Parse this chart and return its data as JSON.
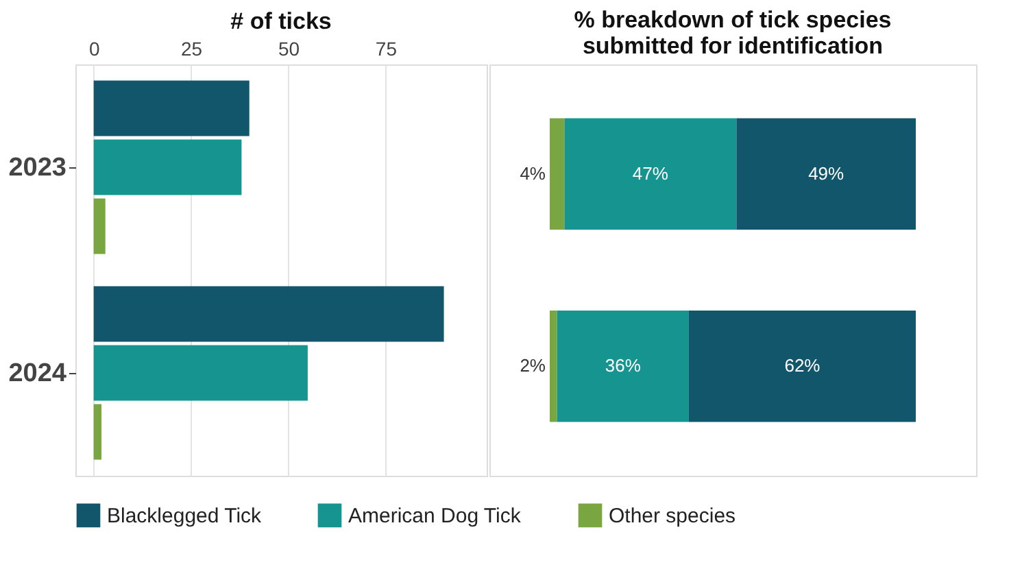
{
  "chart_data": [
    {
      "type": "bar",
      "orientation": "horizontal",
      "title": "# of ticks",
      "categories": [
        "2023",
        "2024"
      ],
      "series": [
        {
          "name": "Blacklegged Tick",
          "color": "#11566a",
          "values": [
            40,
            90
          ]
        },
        {
          "name": "American Dog Tick",
          "color": "#16948f",
          "values": [
            38,
            55
          ]
        },
        {
          "name": "Other species",
          "color": "#7aa641",
          "values": [
            3,
            2
          ]
        }
      ],
      "xlim": [
        -4.7,
        101
      ],
      "xticks": [
        0,
        25,
        50,
        75
      ],
      "grid": "x",
      "legend": "bottom"
    },
    {
      "type": "bar",
      "orientation": "horizontal",
      "stacked": true,
      "title": "% breakdown of tick species\nsubmitted for identification",
      "categories": [
        "2023",
        "2024"
      ],
      "series": [
        {
          "name": "Other species",
          "color": "#7aa641",
          "values": [
            4,
            2
          ],
          "value_labels": [
            "4%",
            "2%"
          ]
        },
        {
          "name": "American Dog Tick",
          "color": "#16948f",
          "values": [
            47,
            36
          ],
          "value_labels": [
            "47%",
            "36%"
          ]
        },
        {
          "name": "Blacklegged Tick",
          "color": "#11566a",
          "values": [
            49,
            62
          ],
          "value_labels": [
            "49%",
            "62%"
          ]
        }
      ],
      "tick_labels": false
    }
  ]
}
